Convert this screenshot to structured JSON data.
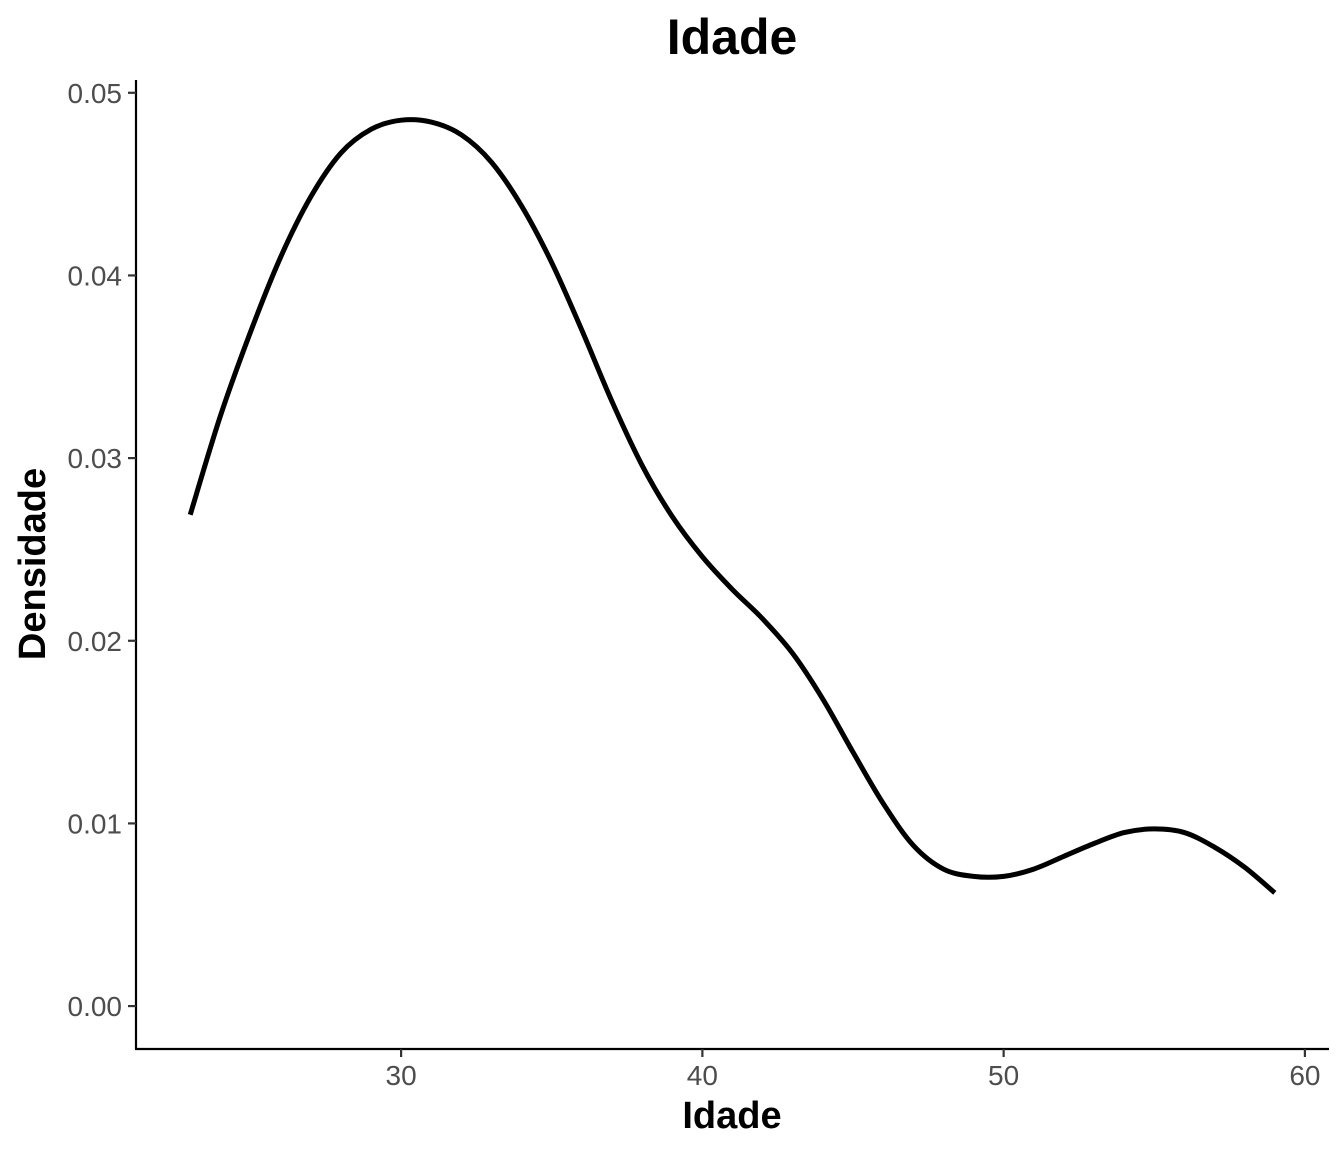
{
  "chart_data": {
    "type": "line",
    "title": "Idade",
    "xlabel": "Idade",
    "ylabel": "Densidade",
    "xlim": [
      21.2,
      60.8
    ],
    "ylim": [
      -0.00235,
      0.0507
    ],
    "x_ticks": [
      30,
      40,
      50,
      60
    ],
    "x_tick_labels": [
      "30",
      "40",
      "50",
      "60"
    ],
    "y_ticks": [
      0.0,
      0.01,
      0.02,
      0.03,
      0.04,
      0.05
    ],
    "y_tick_labels": [
      "0.00",
      "0.01",
      "0.02",
      "0.03",
      "0.04",
      "0.05"
    ],
    "grid": false,
    "legend": "none",
    "line_color": "#000000",
    "series": [
      {
        "x": [
          23,
          24,
          25,
          26,
          27,
          28,
          29,
          30,
          31,
          32,
          33,
          34,
          35,
          36,
          37,
          38,
          39,
          40,
          41,
          42,
          43,
          44,
          45,
          46,
          47,
          48,
          49,
          50,
          51,
          52,
          53,
          54,
          55,
          56,
          57,
          58,
          59
        ],
        "values": [
          0.0269,
          0.0323,
          0.0369,
          0.041,
          0.0443,
          0.0467,
          0.048,
          0.0485,
          0.0484,
          0.0477,
          0.0462,
          0.0438,
          0.0407,
          0.037,
          0.0331,
          0.0296,
          0.0268,
          0.0246,
          0.0228,
          0.0212,
          0.0193,
          0.0168,
          0.0139,
          0.0111,
          0.0088,
          0.0075,
          0.0071,
          0.0071,
          0.0075,
          0.0082,
          0.0089,
          0.0095,
          0.0097,
          0.0095,
          0.0087,
          0.0076,
          0.0062
        ]
      }
    ]
  }
}
